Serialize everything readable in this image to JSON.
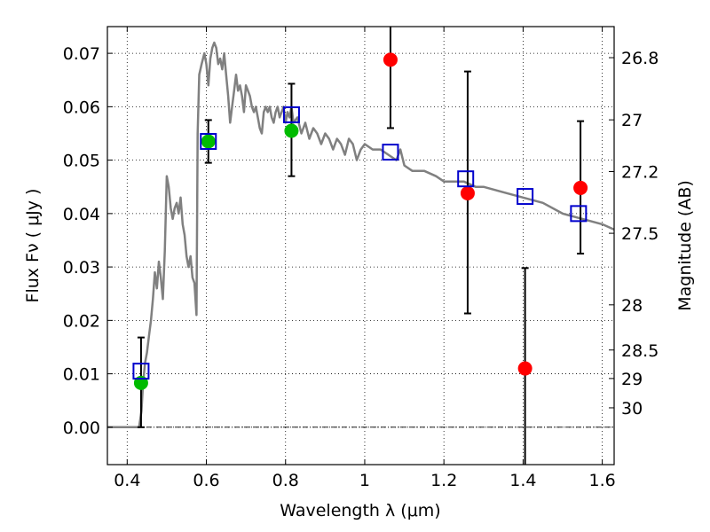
{
  "chart_data": {
    "type": "scatter",
    "title": "",
    "xlabel": "Wavelength  λ (μm)",
    "ylabel": "Flux  Fν  ( μJy )",
    "ylabel_right": "Magnitude (AB)",
    "xlim": [
      0.35,
      1.63
    ],
    "ylim": [
      -0.007,
      0.075
    ],
    "grid": true,
    "x_ticks": [
      "0.4",
      "0.6",
      "0.8",
      "1",
      "1.2",
      "1.4",
      "1.6"
    ],
    "x_tick_values": [
      0.4,
      0.6,
      0.8,
      1.0,
      1.2,
      1.4,
      1.6
    ],
    "y_ticks": [
      "0.00",
      "0.01",
      "0.02",
      "0.03",
      "0.04",
      "0.05",
      "0.06",
      "0.07"
    ],
    "y_tick_values": [
      0.0,
      0.01,
      0.02,
      0.03,
      0.04,
      0.05,
      0.06,
      0.07
    ],
    "right_ticks": [
      "26.8",
      "27",
      "27.2",
      "27.5",
      "28",
      "28.5",
      "29",
      "30"
    ],
    "right_tick_mags": [
      26.8,
      27.0,
      27.2,
      27.5,
      28.0,
      28.5,
      29.0,
      30.0
    ],
    "colors": {
      "model": "#808080",
      "green": "#00bb00",
      "red": "#ff0000",
      "square": "#0000cc",
      "errorbar": "#000000"
    },
    "series": [
      {
        "kind": "model_sed_line",
        "points": [
          [
            0.35,
            0.0
          ],
          [
            0.43,
            0.0
          ],
          [
            0.436,
            0.003
          ],
          [
            0.44,
            0.008
          ],
          [
            0.445,
            0.012
          ],
          [
            0.45,
            0.014
          ],
          [
            0.455,
            0.017
          ],
          [
            0.46,
            0.02
          ],
          [
            0.465,
            0.024
          ],
          [
            0.47,
            0.029
          ],
          [
            0.475,
            0.026
          ],
          [
            0.48,
            0.031
          ],
          [
            0.485,
            0.028
          ],
          [
            0.49,
            0.024
          ],
          [
            0.495,
            0.033
          ],
          [
            0.5,
            0.047
          ],
          [
            0.505,
            0.045
          ],
          [
            0.51,
            0.041
          ],
          [
            0.515,
            0.039
          ],
          [
            0.52,
            0.041
          ],
          [
            0.525,
            0.042
          ],
          [
            0.53,
            0.04
          ],
          [
            0.535,
            0.043
          ],
          [
            0.54,
            0.038
          ],
          [
            0.545,
            0.036
          ],
          [
            0.55,
            0.032
          ],
          [
            0.555,
            0.03
          ],
          [
            0.56,
            0.032
          ],
          [
            0.565,
            0.028
          ],
          [
            0.57,
            0.027
          ],
          [
            0.575,
            0.021
          ],
          [
            0.578,
            0.055
          ],
          [
            0.582,
            0.066
          ],
          [
            0.588,
            0.068
          ],
          [
            0.595,
            0.07
          ],
          [
            0.6,
            0.068
          ],
          [
            0.605,
            0.064
          ],
          [
            0.61,
            0.069
          ],
          [
            0.615,
            0.071
          ],
          [
            0.62,
            0.072
          ],
          [
            0.625,
            0.071
          ],
          [
            0.63,
            0.068
          ],
          [
            0.635,
            0.069
          ],
          [
            0.64,
            0.067
          ],
          [
            0.645,
            0.07
          ],
          [
            0.65,
            0.066
          ],
          [
            0.655,
            0.062
          ],
          [
            0.66,
            0.057
          ],
          [
            0.665,
            0.06
          ],
          [
            0.67,
            0.063
          ],
          [
            0.675,
            0.066
          ],
          [
            0.68,
            0.063
          ],
          [
            0.685,
            0.064
          ],
          [
            0.69,
            0.062
          ],
          [
            0.695,
            0.059
          ],
          [
            0.7,
            0.064
          ],
          [
            0.705,
            0.063
          ],
          [
            0.71,
            0.062
          ],
          [
            0.715,
            0.06
          ],
          [
            0.72,
            0.059
          ],
          [
            0.725,
            0.06
          ],
          [
            0.73,
            0.058
          ],
          [
            0.735,
            0.056
          ],
          [
            0.74,
            0.055
          ],
          [
            0.745,
            0.059
          ],
          [
            0.75,
            0.06
          ],
          [
            0.755,
            0.059
          ],
          [
            0.76,
            0.06
          ],
          [
            0.765,
            0.058
          ],
          [
            0.77,
            0.057
          ],
          [
            0.775,
            0.059
          ],
          [
            0.78,
            0.06
          ],
          [
            0.785,
            0.058
          ],
          [
            0.79,
            0.059
          ],
          [
            0.795,
            0.06
          ],
          [
            0.8,
            0.057
          ],
          [
            0.805,
            0.059
          ],
          [
            0.81,
            0.058
          ],
          [
            0.815,
            0.06
          ],
          [
            0.82,
            0.057
          ],
          [
            0.83,
            0.058
          ],
          [
            0.84,
            0.055
          ],
          [
            0.85,
            0.057
          ],
          [
            0.86,
            0.054
          ],
          [
            0.87,
            0.056
          ],
          [
            0.88,
            0.055
          ],
          [
            0.89,
            0.053
          ],
          [
            0.9,
            0.055
          ],
          [
            0.91,
            0.054
          ],
          [
            0.92,
            0.052
          ],
          [
            0.93,
            0.054
          ],
          [
            0.94,
            0.053
          ],
          [
            0.95,
            0.051
          ],
          [
            0.96,
            0.054
          ],
          [
            0.97,
            0.053
          ],
          [
            0.98,
            0.05
          ],
          [
            0.99,
            0.052
          ],
          [
            1.0,
            0.053
          ],
          [
            1.02,
            0.052
          ],
          [
            1.04,
            0.052
          ],
          [
            1.06,
            0.051
          ],
          [
            1.08,
            0.05
          ],
          [
            1.09,
            0.052
          ],
          [
            1.1,
            0.049
          ],
          [
            1.12,
            0.048
          ],
          [
            1.15,
            0.048
          ],
          [
            1.18,
            0.047
          ],
          [
            1.2,
            0.046
          ],
          [
            1.22,
            0.046
          ],
          [
            1.25,
            0.046
          ],
          [
            1.28,
            0.045
          ],
          [
            1.3,
            0.045
          ],
          [
            1.35,
            0.044
          ],
          [
            1.4,
            0.043
          ],
          [
            1.45,
            0.042
          ],
          [
            1.5,
            0.04
          ],
          [
            1.55,
            0.039
          ],
          [
            1.6,
            0.038
          ],
          [
            1.63,
            0.037
          ]
        ]
      },
      {
        "kind": "green_circles",
        "points": [
          {
            "x": 0.435,
            "y": 0.0083,
            "err_lo": 0.0083,
            "err_hi": 0.0085
          },
          {
            "x": 0.605,
            "y": 0.0535,
            "err_lo": 0.004,
            "err_hi": 0.004
          },
          {
            "x": 0.815,
            "y": 0.0555,
            "err_lo": 0.0085,
            "err_hi": 0.0088
          }
        ]
      },
      {
        "kind": "red_circles",
        "points": [
          {
            "x": 1.065,
            "y": 0.0688,
            "err_lo": 0.0128,
            "err_hi": 0.008
          },
          {
            "x": 1.26,
            "y": 0.0438,
            "err_lo": 0.0225,
            "err_hi": 0.0228
          },
          {
            "x": 1.405,
            "y": 0.011,
            "err_lo": 0.022,
            "err_hi": 0.0188
          },
          {
            "x": 1.545,
            "y": 0.0448,
            "err_lo": 0.0123,
            "err_hi": 0.0125
          }
        ]
      },
      {
        "kind": "blue_squares",
        "points": [
          {
            "x": 0.435,
            "y": 0.0105
          },
          {
            "x": 0.605,
            "y": 0.0535
          },
          {
            "x": 0.815,
            "y": 0.0585
          },
          {
            "x": 1.065,
            "y": 0.0515
          },
          {
            "x": 1.255,
            "y": 0.0465
          },
          {
            "x": 1.405,
            "y": 0.0432
          },
          {
            "x": 1.54,
            "y": 0.04
          }
        ]
      }
    ]
  }
}
